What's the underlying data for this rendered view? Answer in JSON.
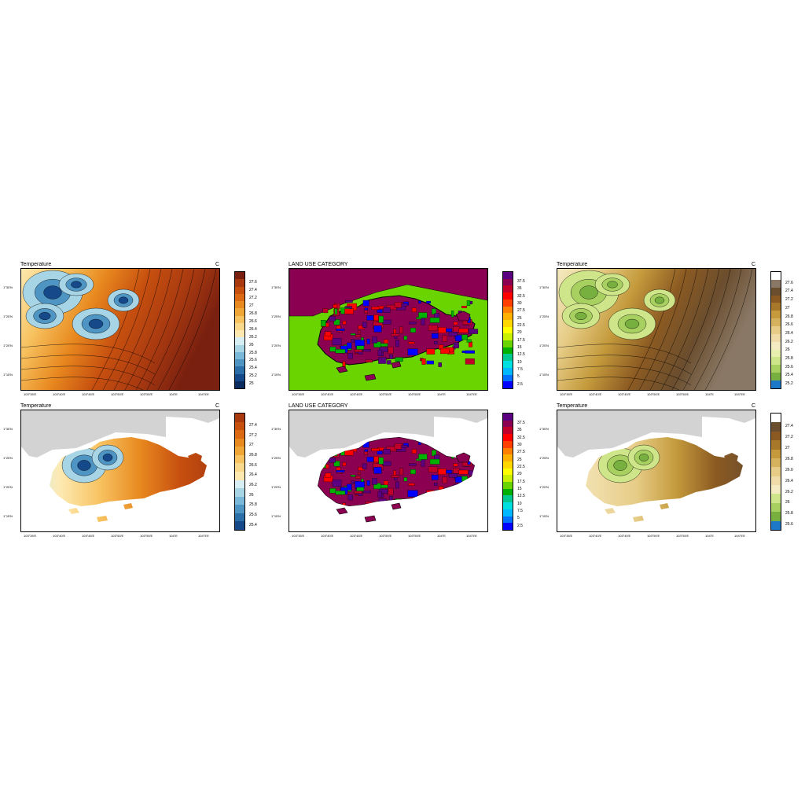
{
  "panels": [
    {
      "id": "p1",
      "title": "Temperature",
      "unit": "C",
      "type": "temp_all",
      "yticks": [
        "1°30'N",
        "1°25'N",
        "1°20'N",
        "1°15'N"
      ],
      "xticks": [
        "103°35'E",
        "103°40'E",
        "103°45'E",
        "103°50'E",
        "103°55'E",
        "104°E",
        "104°5'E"
      ],
      "colorbar": {
        "colors": [
          "#7a2010",
          "#a93a10",
          "#c7500f",
          "#dc6a14",
          "#e8891f",
          "#f0a636",
          "#f7c260",
          "#fbd98c",
          "#fde9b0",
          "#d6eef4",
          "#a8d5e6",
          "#79b8d8",
          "#4e95c4",
          "#2c6fa8",
          "#15498a",
          "#0a2c5e"
        ],
        "labels": [
          "27.6",
          "27.4",
          "27.2",
          "27",
          "26.8",
          "26.6",
          "26.4",
          "26.2",
          "26",
          "25.8",
          "25.6",
          "25.4",
          "25.2",
          "25"
        ]
      }
    },
    {
      "id": "p2",
      "title": "LAND USE CATEGORY",
      "unit": "",
      "type": "land_all",
      "yticks": [
        "1°30'N",
        "1°25'N",
        "1°20'N",
        "1°15'N"
      ],
      "xticks": [
        "103°35'E",
        "103°40'E",
        "103°45'E",
        "103°50'E",
        "103°55'E",
        "104°E",
        "104°5'E"
      ],
      "colorbar": {
        "colors": [
          "#5a0080",
          "#8b0050",
          "#c0002a",
          "#ff0000",
          "#ff4000",
          "#ff8000",
          "#ffb000",
          "#ffd800",
          "#ffff00",
          "#c8f000",
          "#6ad400",
          "#00b000",
          "#00c890",
          "#00e0e0",
          "#00b8ff",
          "#0070ff",
          "#0000ff"
        ],
        "labels": [
          "37.5",
          "35",
          "32.5",
          "30",
          "27.5",
          "25",
          "22.5",
          "20",
          "17.5",
          "15",
          "12.5",
          "10",
          "7.5",
          "5",
          "2.5"
        ]
      }
    },
    {
      "id": "p3",
      "title": "Temperature",
      "unit": "C",
      "type": "temp_all_brown",
      "yticks": [
        "1°30'N",
        "1°25'N",
        "1°20'N",
        "1°15'N"
      ],
      "xticks": [
        "103°35'E",
        "103°40'E",
        "103°45'E",
        "103°50'E",
        "103°55'E",
        "104°E",
        "104°5'E"
      ],
      "colorbar": {
        "colors": [
          "#ffffff",
          "#8a7866",
          "#6b4e2e",
          "#8b5a22",
          "#a8782a",
          "#c49a3c",
          "#d6b25e",
          "#e6cc86",
          "#efdca8",
          "#f4ebc2",
          "#e8f0b0",
          "#cfe58a",
          "#a8d060",
          "#78b040",
          "#1e78c8"
        ],
        "labels": [
          "27.6",
          "27.4",
          "27.2",
          "27",
          "26.8",
          "26.6",
          "26.4",
          "26.2",
          "26",
          "25.8",
          "25.6",
          "25.4",
          "25.2"
        ]
      }
    },
    {
      "id": "p4",
      "title": "Temperature",
      "unit": "C",
      "type": "temp_land",
      "yticks": [
        "1°30'N",
        "1°25'N",
        "1°20'N",
        "1°15'N"
      ],
      "xticks": [
        "103°35'E",
        "103°40'E",
        "103°45'E",
        "103°50'E",
        "103°55'E",
        "104°E",
        "104°5'E"
      ],
      "colorbar": {
        "colors": [
          "#a93a10",
          "#c7500f",
          "#dc6a14",
          "#e8891f",
          "#f0a636",
          "#f7c260",
          "#fbd98c",
          "#fde9b0",
          "#d6eef4",
          "#a8d5e6",
          "#79b8d8",
          "#4e95c4",
          "#2c6fa8",
          "#15498a"
        ],
        "labels": [
          "27.4",
          "27.2",
          "27",
          "26.8",
          "26.6",
          "26.4",
          "26.2",
          "26",
          "25.8",
          "25.6",
          "25.4"
        ]
      }
    },
    {
      "id": "p5",
      "title": "LAND USE CATEGORY",
      "unit": "",
      "type": "land_land",
      "yticks": [
        "1°30'N",
        "1°25'N",
        "1°20'N",
        "1°15'N"
      ],
      "xticks": [
        "103°35'E",
        "103°40'E",
        "103°45'E",
        "103°50'E",
        "103°55'E",
        "104°E",
        "104°5'E"
      ],
      "colorbar": {
        "colors": [
          "#5a0080",
          "#8b0050",
          "#c0002a",
          "#ff0000",
          "#ff4000",
          "#ff8000",
          "#ffb000",
          "#ffd800",
          "#ffff00",
          "#c8f000",
          "#6ad400",
          "#00b000",
          "#00c890",
          "#00e0e0",
          "#00b8ff",
          "#0070ff",
          "#0000ff"
        ],
        "labels": [
          "37.5",
          "35",
          "32.5",
          "30",
          "27.5",
          "25",
          "22.5",
          "20",
          "17.5",
          "15",
          "12.5",
          "10",
          "7.5",
          "5",
          "2.5"
        ]
      }
    },
    {
      "id": "p6",
      "title": "Temperature",
      "unit": "C",
      "type": "temp_land_brown",
      "yticks": [
        "1°30'N",
        "1°25'N",
        "1°20'N",
        "1°15'N"
      ],
      "xticks": [
        "103°35'E",
        "103°40'E",
        "103°45'E",
        "103°50'E",
        "103°55'E",
        "104°E",
        "104°5'E"
      ],
      "colorbar": {
        "colors": [
          "#ffffff",
          "#6b4e2e",
          "#8b5a22",
          "#a8782a",
          "#c49a3c",
          "#d6b25e",
          "#e6cc86",
          "#efdca8",
          "#f4ebc2",
          "#cfe58a",
          "#a8d060",
          "#78b040",
          "#1e78c8"
        ],
        "labels": [
          "27.4",
          "27.2",
          "27",
          "26.8",
          "26.6",
          "26.4",
          "26.2",
          "26",
          "25.8",
          "25.6"
        ]
      }
    }
  ]
}
